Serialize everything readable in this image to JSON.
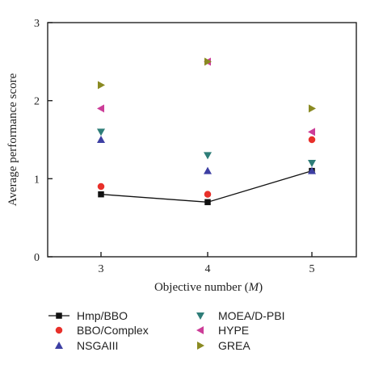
{
  "chart_data": {
    "type": "scatter",
    "title": "",
    "xlabel_main": "Objective number (",
    "xlabel_var": "M",
    "xlabel_end": ")",
    "ylabel": "Average performance score",
    "x": [
      3,
      4,
      5
    ],
    "xticks": [
      "3",
      "4",
      "5"
    ],
    "ylim": [
      0,
      3
    ],
    "yticks": [
      "0",
      "1",
      "2",
      "3"
    ],
    "grid": false,
    "legend_position": "bottom",
    "series": [
      {
        "name": "Hmp/BBO",
        "values": [
          0.8,
          0.7,
          1.1
        ],
        "marker": "square",
        "color": "#111111",
        "line": true
      },
      {
        "name": "BBO/Complex",
        "values": [
          0.9,
          0.8,
          1.5
        ],
        "marker": "circle",
        "color": "#e8302a",
        "line": false
      },
      {
        "name": "NSGAIII",
        "values": [
          1.5,
          1.1,
          1.1
        ],
        "marker": "triangle-up",
        "color": "#3d3fa3",
        "line": false
      },
      {
        "name": "MOEA/D-PBI",
        "values": [
          1.6,
          1.3,
          1.2
        ],
        "marker": "triangle-down",
        "color": "#2e7d78",
        "line": false
      },
      {
        "name": "HYPE",
        "values": [
          1.9,
          2.5,
          1.6
        ],
        "marker": "triangle-left",
        "color": "#cc3d98",
        "line": false
      },
      {
        "name": "GREA",
        "values": [
          2.2,
          2.5,
          1.9
        ],
        "marker": "triangle-right",
        "color": "#8a8a22",
        "line": false
      }
    ]
  }
}
